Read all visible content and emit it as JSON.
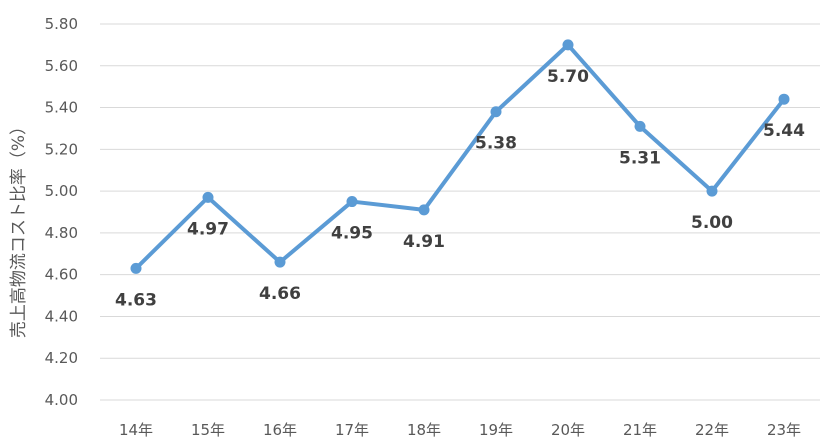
{
  "chart_data": {
    "type": "line",
    "categories": [
      "14年",
      "15年",
      "16年",
      "17年",
      "18年",
      "19年",
      "20年",
      "21年",
      "22年",
      "23年"
    ],
    "series": [
      {
        "values": [
          4.63,
          4.97,
          4.66,
          4.95,
          4.91,
          5.38,
          5.7,
          5.31,
          5.0,
          5.44
        ],
        "labels": [
          "4.63",
          "4.97",
          "4.66",
          "4.95",
          "4.91",
          "5.38",
          "5.70",
          "5.31",
          "5.00",
          "5.44"
        ],
        "color": "#5B9BD5"
      }
    ],
    "title": "",
    "xlabel": "",
    "ylabel": "売上高物流コスト比率（%）",
    "ylim": [
      4.0,
      5.8
    ],
    "yticks": [
      "4.00",
      "4.20",
      "4.40",
      "4.60",
      "4.80",
      "5.00",
      "5.20",
      "5.40",
      "5.60",
      "5.80"
    ],
    "grid": true,
    "gridColor": "#D9D9D9",
    "legend": "none"
  }
}
